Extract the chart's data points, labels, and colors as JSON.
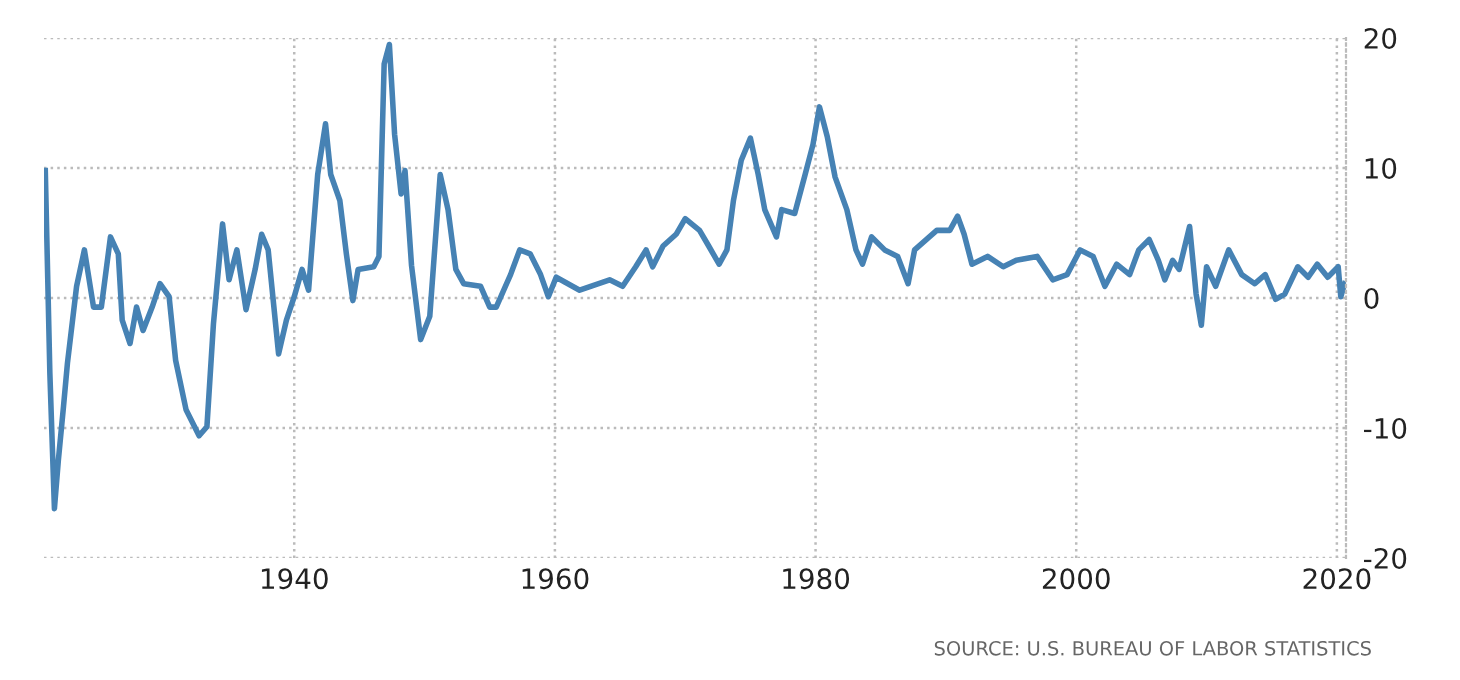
{
  "chart_data": {
    "type": "line",
    "x": [
      1920.9,
      1921.25,
      1921.6,
      1921.9,
      1922.3,
      1922.6,
      1923.3,
      1923.9,
      1924.6,
      1925.2,
      1925.9,
      1926.5,
      1926.8,
      1927.4,
      1927.9,
      1928.4,
      1929.1,
      1929.7,
      1930.4,
      1930.9,
      1931.7,
      1932.7,
      1933.3,
      1933.8,
      1934.5,
      1935,
      1935.6,
      1936.3,
      1937,
      1937.5,
      1938,
      1938.8,
      1939.4,
      1940,
      1940.6,
      1941.1,
      1941.8,
      1942.4,
      1942.8,
      1943.5,
      1944,
      1944.5,
      1944.9,
      1946.1,
      1946.5,
      1946.9,
      1947.3,
      1947.7,
      1948.2,
      1948.5,
      1949,
      1949.7,
      1950.4,
      1951.2,
      1951.8,
      1952.4,
      1953,
      1954.3,
      1955,
      1955.5,
      1956.6,
      1957.3,
      1958.1,
      1958.9,
      1959.5,
      1960.1,
      1961.9,
      1964.2,
      1965.2,
      1966.2,
      1967,
      1967.5,
      1968.3,
      1969.3,
      1970,
      1971.1,
      1971.8,
      1972.6,
      1973.2,
      1973.7,
      1974.3,
      1975,
      1975.6,
      1976.1,
      1977,
      1977.4,
      1978.4,
      1979.2,
      1979.8,
      1980.3,
      1980.9,
      1981.5,
      1982.4,
      1983.1,
      1983.6,
      1984.3,
      1985.3,
      1986.3,
      1987.1,
      1987.6,
      1989.3,
      1990.3,
      1990.9,
      1991.4,
      1992,
      1993.2,
      1994.4,
      1995.4,
      1997,
      1998.2,
      1999.3,
      2000.3,
      2001.3,
      2002.2,
      2003.1,
      2004.1,
      2004.8,
      2005.6,
      2006.3,
      2006.8,
      2007.4,
      2007.9,
      2008.7,
      2009.2,
      2009.6,
      2010,
      2010.7,
      2011.7,
      2012.7,
      2013.7,
      2014.5,
      2015.3,
      2016,
      2017,
      2017.8,
      2018.5,
      2019.3,
      2020.1,
      2020.3,
      2020.6
    ],
    "series": [
      {
        "color": "#4682b4",
        "values": [
          9.8,
          -5.8,
          -16.2,
          -12.5,
          -8.3,
          -5,
          0.9,
          3.7,
          -0.7,
          -0.7,
          4.7,
          3.4,
          -1.7,
          -3.5,
          -0.7,
          -2.5,
          -0.7,
          1.1,
          0.1,
          -4.8,
          -8.6,
          -10.6,
          -9.9,
          -2,
          5.7,
          1.4,
          3.7,
          -0.9,
          2.2,
          4.9,
          3.7,
          -4.3,
          -1.7,
          0.1,
          2.2,
          0.6,
          9.5,
          13.4,
          9.5,
          7.5,
          3.4,
          -0.2,
          2.2,
          2.4,
          3.2,
          18,
          19.5,
          12.6,
          8,
          9.8,
          2.5,
          -3.2,
          -1.4,
          9.5,
          6.8,
          2.2,
          1.1,
          0.9,
          -0.7,
          -0.7,
          1.8,
          3.7,
          3.4,
          1.8,
          0.1,
          1.6,
          0.6,
          1.4,
          0.9,
          2.4,
          3.7,
          2.4,
          4,
          4.9,
          6.1,
          5.2,
          4,
          2.6,
          3.7,
          7.5,
          10.6,
          12.3,
          9.5,
          6.8,
          4.7,
          6.8,
          6.5,
          9.5,
          11.8,
          14.7,
          12.4,
          9.3,
          6.8,
          3.7,
          2.6,
          4.7,
          3.7,
          3.2,
          1.1,
          3.7,
          5.2,
          5.2,
          6.3,
          4.9,
          2.6,
          3.2,
          2.4,
          2.9,
          3.2,
          1.4,
          1.8,
          3.7,
          3.2,
          0.9,
          2.6,
          1.8,
          3.7,
          4.5,
          2.9,
          1.4,
          2.9,
          2.2,
          5.5,
          0.3,
          -2.1,
          2.4,
          0.9,
          3.7,
          1.8,
          1.1,
          1.8,
          -0.1,
          0.3,
          2.4,
          1.6,
          2.6,
          1.6,
          2.4,
          0.1,
          1.1
        ]
      }
    ],
    "xlim": [
      1920.8,
      2020.7
    ],
    "xticks": [
      1940,
      1960,
      1980,
      2000,
      2020
    ],
    "ylim": [
      -20,
      20
    ],
    "yticks": [
      -20,
      -10,
      0,
      10,
      20
    ],
    "grid": true,
    "line_style": "solid",
    "marker": "none",
    "annotations": [
      "SOURCE: U.S. BUREAU OF LABOR STATISTICS"
    ]
  }
}
